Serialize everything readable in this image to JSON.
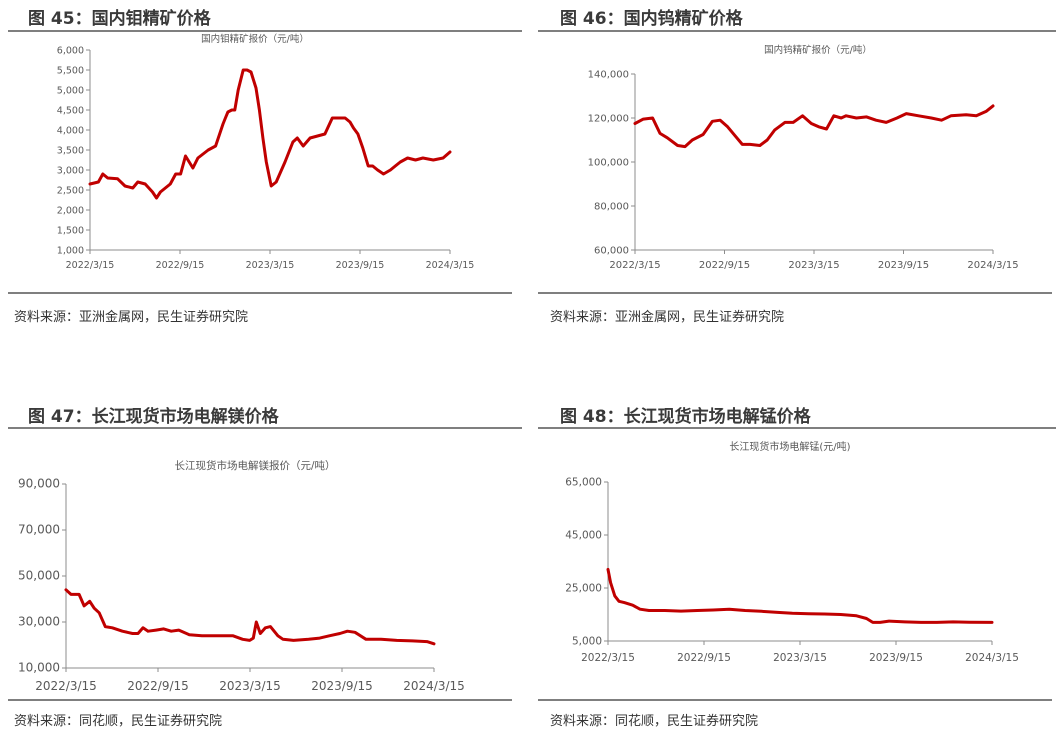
{
  "panels": [
    {
      "figure_title": "图 45：国内钼精矿价格",
      "source": "资料来源：亚洲金属网，民生证券研究院",
      "chart_data": {
        "type": "line",
        "title": "国内钼精矿报价（元/吨）",
        "x_ticks": [
          "2022/3/15",
          "2022/9/15",
          "2023/3/15",
          "2023/9/15",
          "2024/3/15"
        ],
        "y_ticks": [
          "1,000",
          "1,500",
          "2,000",
          "2,500",
          "3,000",
          "3,500",
          "4,000",
          "4,500",
          "5,000",
          "5,500",
          "6,000"
        ],
        "ylim": [
          1000,
          6000
        ],
        "x_range": [
          "2022-03-15",
          "2024-03-15"
        ],
        "series": [
          {
            "color": "#c00000",
            "x": [
              "2022-03-15",
              "2022-04-01",
              "2022-04-10",
              "2022-04-20",
              "2022-05-10",
              "2022-05-25",
              "2022-06-10",
              "2022-06-20",
              "2022-07-05",
              "2022-07-20",
              "2022-07-28",
              "2022-08-05",
              "2022-08-25",
              "2022-09-05",
              "2022-09-15",
              "2022-09-25",
              "2022-10-10",
              "2022-10-20",
              "2022-11-10",
              "2022-11-25",
              "2022-12-10",
              "2022-12-15",
              "2022-12-20",
              "2022-12-28",
              "2023-01-03",
              "2023-01-10",
              "2023-01-20",
              "2023-01-28",
              "2023-02-05",
              "2023-02-15",
              "2023-02-22",
              "2023-03-01",
              "2023-03-08",
              "2023-03-18",
              "2023-03-28",
              "2023-04-15",
              "2023-05-01",
              "2023-05-10",
              "2023-05-22",
              "2023-06-05",
              "2023-06-20",
              "2023-07-05",
              "2023-07-20",
              "2023-08-05",
              "2023-08-15",
              "2023-08-25",
              "2023-09-01",
              "2023-09-10",
              "2023-09-20",
              "2023-10-01",
              "2023-10-10",
              "2023-10-20",
              "2023-11-01",
              "2023-11-15",
              "2023-11-25",
              "2023-12-05",
              "2023-12-20",
              "2024-01-05",
              "2024-01-20",
              "2024-02-10",
              "2024-03-01",
              "2024-03-15"
            ],
            "y": [
              2650,
              2700,
              2900,
              2800,
              2780,
              2600,
              2550,
              2700,
              2650,
              2450,
              2300,
              2450,
              2650,
              2900,
              2900,
              3350,
              3050,
              3300,
              3500,
              3600,
              4150,
              4300,
              4450,
              4500,
              4500,
              5000,
              5500,
              5500,
              5450,
              5050,
              4500,
              3800,
              3200,
              2600,
              2700,
              3200,
              3700,
              3800,
              3600,
              3800,
              3850,
              3900,
              4300,
              4300,
              4300,
              4200,
              4050,
              3900,
              3550,
              3100,
              3100,
              3000,
              2900,
              3000,
              3100,
              3200,
              3300,
              3250,
              3300,
              3250,
              3300,
              3450
            ]
          }
        ]
      }
    },
    {
      "figure_title": "图 46：国内钨精矿价格",
      "source": "资料来源：亚洲金属网，民生证券研究院",
      "chart_data": {
        "type": "line",
        "title": "国内钨精矿报价（元/吨）",
        "x_ticks": [
          "2022/3/15",
          "2022/9/15",
          "2023/3/15",
          "2023/9/15",
          "2024/3/15"
        ],
        "y_ticks": [
          "60,000",
          "80,000",
          "100,000",
          "120,000",
          "140,000"
        ],
        "ylim": [
          60000,
          140000
        ],
        "x_range": [
          "2022-03-15",
          "2024-03-15"
        ],
        "series": [
          {
            "color": "#c00000",
            "x": [
              "2022-03-15",
              "2022-04-01",
              "2022-04-20",
              "2022-05-05",
              "2022-05-20",
              "2022-06-10",
              "2022-06-25",
              "2022-07-10",
              "2022-08-01",
              "2022-08-20",
              "2022-09-05",
              "2022-09-20",
              "2022-10-05",
              "2022-10-20",
              "2022-11-05",
              "2022-11-25",
              "2022-12-10",
              "2022-12-25",
              "2023-01-15",
              "2023-02-01",
              "2023-02-20",
              "2023-03-10",
              "2023-03-25",
              "2023-04-10",
              "2023-04-25",
              "2023-05-10",
              "2023-05-20",
              "2023-06-10",
              "2023-07-01",
              "2023-07-20",
              "2023-08-10",
              "2023-09-01",
              "2023-09-20",
              "2023-10-15",
              "2023-11-10",
              "2023-12-01",
              "2023-12-20",
              "2024-01-20",
              "2024-02-10",
              "2024-03-01",
              "2024-03-15"
            ],
            "y": [
              117500,
              119500,
              120000,
              113000,
              111000,
              107500,
              107000,
              110000,
              112500,
              118500,
              119000,
              116000,
              112000,
              108000,
              108000,
              107500,
              110000,
              114500,
              118000,
              118000,
              121000,
              117500,
              116000,
              115000,
              121000,
              120000,
              121000,
              120000,
              120500,
              119000,
              118000,
              120000,
              122000,
              121000,
              120000,
              119000,
              121000,
              121500,
              121000,
              123000,
              125500
            ]
          }
        ]
      }
    },
    {
      "figure_title": "图 47：长江现货市场电解镁价格",
      "source": "资料来源：同花顺，民生证券研究院",
      "chart_data": {
        "type": "line",
        "title": "长江现货市场电解镁报价（元/吨）",
        "x_ticks": [
          "2022/3/15",
          "2022/9/15",
          "2023/3/15",
          "2023/9/15",
          "2024/3/15"
        ],
        "y_ticks": [
          "10,000",
          "30,000",
          "50,000",
          "70,000",
          "90,000"
        ],
        "ylim": [
          10000,
          90000
        ],
        "x_range": [
          "2022-03-15",
          "2024-03-15"
        ],
        "series": [
          {
            "color": "#c00000",
            "x": [
              "2022-03-15",
              "2022-03-25",
              "2022-04-10",
              "2022-04-20",
              "2022-05-01",
              "2022-05-10",
              "2022-05-20",
              "2022-06-01",
              "2022-06-15",
              "2022-07-05",
              "2022-07-25",
              "2022-08-05",
              "2022-08-15",
              "2022-08-25",
              "2022-09-10",
              "2022-09-25",
              "2022-10-10",
              "2022-10-25",
              "2022-11-15",
              "2022-12-10",
              "2023-01-10",
              "2023-02-10",
              "2023-03-01",
              "2023-03-15",
              "2023-03-22",
              "2023-03-28",
              "2023-04-05",
              "2023-04-15",
              "2023-04-25",
              "2023-05-10",
              "2023-05-20",
              "2023-06-10",
              "2023-07-10",
              "2023-08-01",
              "2023-08-20",
              "2023-09-10",
              "2023-09-25",
              "2023-10-10",
              "2023-11-01",
              "2023-12-01",
              "2024-01-01",
              "2024-02-01",
              "2024-03-01",
              "2024-03-15"
            ],
            "y": [
              44000,
              42000,
              42000,
              37000,
              39000,
              36000,
              34000,
              28000,
              27500,
              26000,
              25000,
              25000,
              27500,
              26000,
              26500,
              27000,
              26000,
              26500,
              24500,
              24000,
              24000,
              24000,
              22500,
              22000,
              23000,
              30000,
              25000,
              27500,
              28000,
              24000,
              22500,
              22000,
              22500,
              23000,
              24000,
              25000,
              26000,
              25500,
              22500,
              22500,
              22000,
              21800,
              21500,
              20500
            ]
          }
        ]
      }
    },
    {
      "figure_title": "图 48：长江现货市场电解锰价格",
      "source": "资料来源：同花顺，民生证券研究院",
      "chart_data": {
        "type": "line",
        "title": "长江现货市场电解锰(元/吨)",
        "x_ticks": [
          "2022/3/15",
          "2022/9/15",
          "2023/3/15",
          "2023/9/15",
          "2024/3/15"
        ],
        "y_ticks": [
          "5,000",
          "25,000",
          "45,000",
          "65,000"
        ],
        "ylim": [
          5000,
          65000
        ],
        "x_range": [
          "2022-03-15",
          "2024-03-15"
        ],
        "series": [
          {
            "color": "#c00000",
            "x": [
              "2022-03-15",
              "2022-03-20",
              "2022-03-28",
              "2022-04-05",
              "2022-04-15",
              "2022-05-01",
              "2022-05-15",
              "2022-06-01",
              "2022-07-01",
              "2022-08-01",
              "2022-09-01",
              "2022-10-01",
              "2022-11-01",
              "2022-12-01",
              "2023-01-01",
              "2023-02-01",
              "2023-03-01",
              "2023-04-01",
              "2023-05-01",
              "2023-06-01",
              "2023-07-01",
              "2023-07-20",
              "2023-08-01",
              "2023-08-15",
              "2023-09-01",
              "2023-10-01",
              "2023-11-01",
              "2023-12-01",
              "2024-01-01",
              "2024-02-01",
              "2024-03-15"
            ],
            "y": [
              32000,
              27000,
              22000,
              20000,
              19500,
              18500,
              17000,
              16500,
              16500,
              16300,
              16500,
              16700,
              17000,
              16500,
              16200,
              15800,
              15500,
              15300,
              15200,
              15000,
              14500,
              13500,
              12000,
              12000,
              12500,
              12200,
              12000,
              12000,
              12200,
              12100,
              12000
            ]
          }
        ]
      }
    }
  ]
}
